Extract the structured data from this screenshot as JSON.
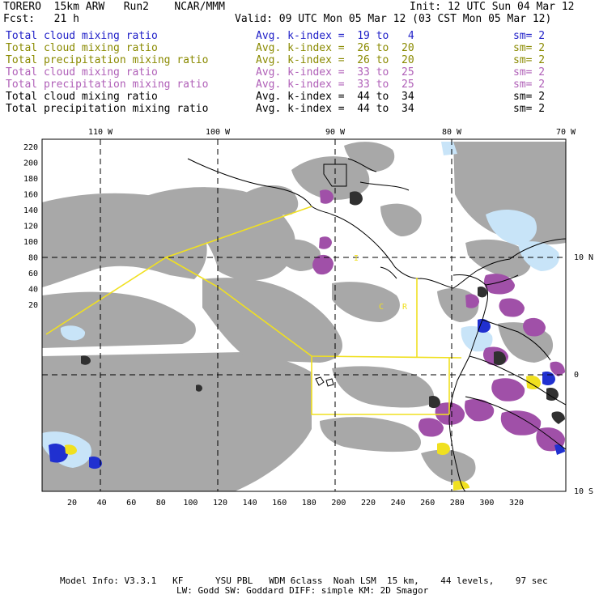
{
  "header": {
    "model": "TORERO  15km ARW   Run2    NCAR/MMM",
    "init": "Init: 12 UTC Sun 04 Mar 12",
    "fcst": "Fcst:   21 h",
    "valid": "Valid: 09 UTC Mon 05 Mar 12 (03 CST Mon 05 Mar 12)"
  },
  "legend": [
    {
      "field": "Total cloud mixing ratio",
      "kindex": "Avg. k-index =  19 to   4",
      "sm": "sm= 2",
      "color": "#2020c8"
    },
    {
      "field": "Total cloud mixing ratio",
      "kindex": "Avg. k-index =  26 to  20",
      "sm": "sm= 2",
      "color": "#8a8a00"
    },
    {
      "field": "Total precipitation mixing ratio",
      "kindex": "Avg. k-index =  26 to  20",
      "sm": "sm= 2",
      "color": "#8a8a00"
    },
    {
      "field": "Total cloud mixing ratio",
      "kindex": "Avg. k-index =  33 to  25",
      "sm": "sm= 2",
      "color": "#b060b8"
    },
    {
      "field": "Total precipitation mixing ratio",
      "kindex": "Avg. k-index =  33 to  25",
      "sm": "sm= 2",
      "color": "#b060b8"
    },
    {
      "field": "Total cloud mixing ratio",
      "kindex": "Avg. k-index =  44 to  34",
      "sm": "sm= 2",
      "color": "#000000"
    },
    {
      "field": "Total precipitation mixing ratio",
      "kindex": "Avg. k-index =  44 to  34",
      "sm": "sm= 2",
      "color": "#000000"
    }
  ],
  "map": {
    "lon_labels": [
      "110 W",
      "100 W",
      "90 W",
      "80 W",
      "70 W"
    ],
    "lat_labels": [
      "10 N",
      "0",
      "10 S"
    ],
    "y_ticks": [
      "220",
      "200",
      "180",
      "160",
      "140",
      "120",
      "100",
      "80",
      "60",
      "40",
      "20"
    ],
    "x_ticks": [
      "20",
      "40",
      "60",
      "80",
      "100",
      "120",
      "140",
      "160",
      "180",
      "200",
      "220",
      "240",
      "260",
      "280",
      "300",
      "320"
    ],
    "region_labels": [
      "I",
      "C",
      "R"
    ],
    "colors": {
      "cloud_gray": "#a8a8a8",
      "light_blue": "#c8e4f8",
      "dark_blue": "#2030d0",
      "purple": "#a050a8",
      "yellow_domain": "#f0e020",
      "dark_cell": "#303030"
    }
  },
  "footer": {
    "line1": "Model Info: V3.3.1   KF      YSU PBL   WDM 6class  Noah LSM  15 km,    44 levels,    97 sec",
    "line2": "LW: Godd SW: Goddard DIFF: simple KM: 2D Smagor"
  }
}
